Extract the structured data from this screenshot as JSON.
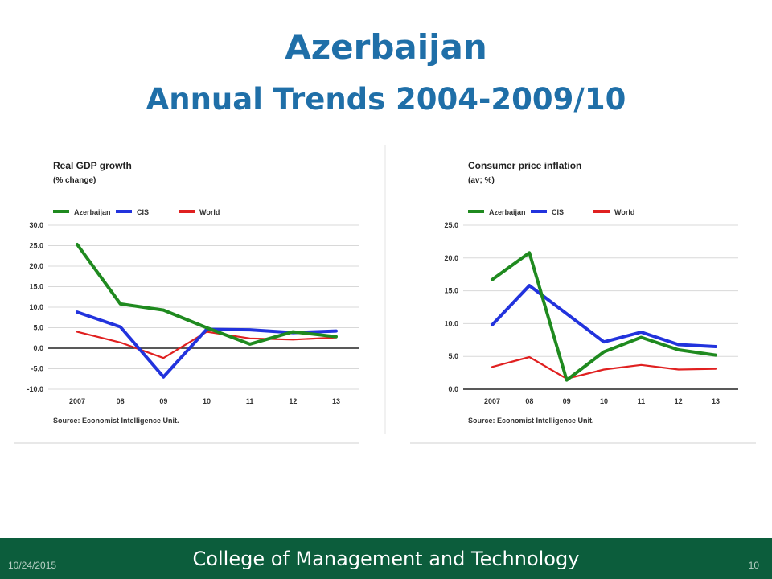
{
  "slide": {
    "title": "Azerbaijan",
    "subtitle": "Annual Trends 2004-2009/10"
  },
  "footer": {
    "date": "10/24/2015",
    "title": "College of Management and Technology",
    "page": "10"
  },
  "colors": {
    "azerbaijan": "#1f8a1f",
    "cis": "#2233dd",
    "world": "#e02020",
    "grid": "#d8d8d8",
    "footer_bg": "#0c5d3c",
    "title": "#1f6fa8"
  },
  "chart_data": [
    {
      "type": "line",
      "title": "Real GDP growth",
      "subtitle": "(% change)",
      "categories": [
        "2007",
        "08",
        "09",
        "10",
        "11",
        "12",
        "13"
      ],
      "ylim": [
        -10,
        30
      ],
      "yticks": [
        "30.0",
        "25.0",
        "20.0",
        "15.0",
        "10.0",
        "5.0",
        "0.0",
        "-5.0",
        "-10.0"
      ],
      "source": "Source: Economist Intelligence Unit.",
      "legend_position": "top",
      "series": [
        {
          "name": "Azerbaijan",
          "values": [
            25.3,
            10.8,
            9.3,
            5.0,
            1.0,
            4.0,
            2.8
          ]
        },
        {
          "name": "CIS",
          "values": [
            8.8,
            5.2,
            -7.0,
            4.6,
            4.5,
            3.8,
            4.2
          ]
        },
        {
          "name": "World",
          "values": [
            4.0,
            1.4,
            -2.4,
            4.0,
            2.4,
            2.1,
            2.6
          ]
        }
      ]
    },
    {
      "type": "line",
      "title": "Consumer price inflation",
      "subtitle": "(av; %)",
      "categories": [
        "2007",
        "08",
        "09",
        "10",
        "11",
        "12",
        "13"
      ],
      "ylim": [
        0,
        25
      ],
      "yticks": [
        "25.0",
        "20.0",
        "15.0",
        "10.0",
        "5.0",
        "0.0"
      ],
      "source": "Source: Economist Intelligence Unit.",
      "legend_position": "top",
      "series": [
        {
          "name": "Azerbaijan",
          "values": [
            16.7,
            20.8,
            1.4,
            5.7,
            7.9,
            6.0,
            5.2
          ]
        },
        {
          "name": "CIS",
          "values": [
            9.8,
            15.8,
            11.5,
            7.2,
            8.7,
            6.8,
            6.5
          ]
        },
        {
          "name": "World",
          "values": [
            3.4,
            4.9,
            1.6,
            3.0,
            3.7,
            3.0,
            3.1
          ]
        }
      ]
    }
  ]
}
